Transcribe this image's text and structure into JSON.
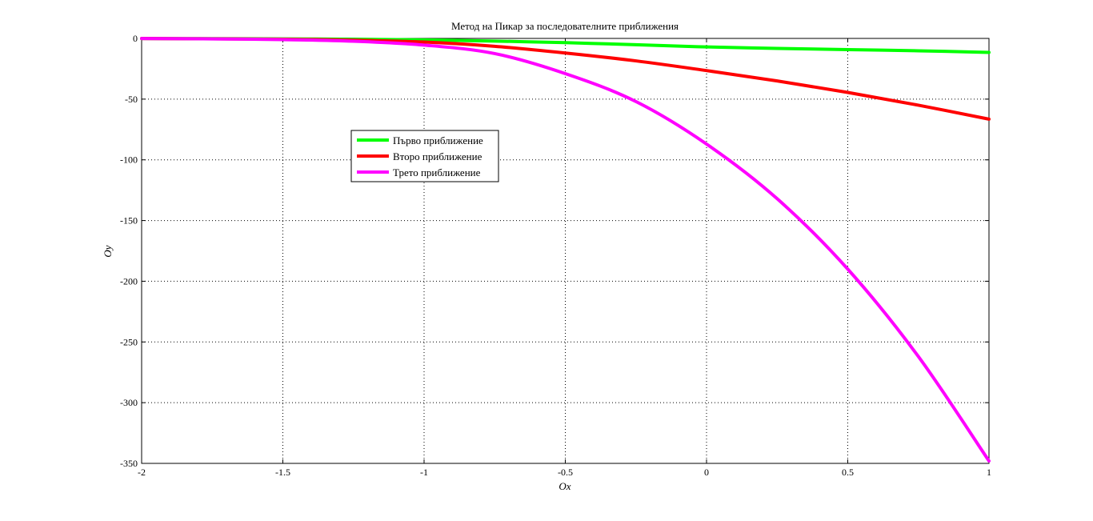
{
  "chart_data": {
    "type": "line",
    "title": "Метод на Пикар за последователните приближения",
    "xlabel": "Ox",
    "ylabel": "Oy",
    "xlim": [
      -2,
      1
    ],
    "ylim": [
      -350,
      0
    ],
    "xticks": [
      -2,
      -1.5,
      -1,
      -0.5,
      0,
      0.5,
      1
    ],
    "yticks": [
      0,
      -50,
      -100,
      -150,
      -200,
      -250,
      -300,
      -350
    ],
    "xtick_labels": [
      "-2",
      "-1.5",
      "-1",
      "-0.5",
      "0",
      "0.5",
      "1"
    ],
    "ytick_labels": [
      "0",
      "-50",
      "-100",
      "-150",
      "-200",
      "-250",
      "-300",
      "-350"
    ],
    "grid": true,
    "legend_position": "upper-left-center",
    "x": [
      -2,
      -1.75,
      -1.5,
      -1.25,
      -1,
      -0.75,
      -0.5,
      -0.25,
      0,
      0.25,
      0.5,
      0.75,
      1
    ],
    "series": [
      {
        "name": "Първо приближение",
        "color": "#00ff00",
        "values": [
          -0.1,
          -0.2,
          -0.4,
          -0.7,
          -1.2,
          -2.2,
          -3.5,
          -5.2,
          -7.0,
          -8.2,
          -9.2,
          -10.2,
          -11.5
        ]
      },
      {
        "name": "Второ приближение",
        "color": "#ff0000",
        "values": [
          -0.1,
          -0.3,
          -0.7,
          -1.4,
          -3.0,
          -6.5,
          -12.0,
          -18.5,
          -26.5,
          -35.0,
          -44.5,
          -55.0,
          -66.5
        ]
      },
      {
        "name": "Трето приближение",
        "color": "#ff00ff",
        "values": [
          -0.1,
          -0.4,
          -1.0,
          -2.3,
          -5.5,
          -12.5,
          -29.0,
          -52.0,
          -87.0,
          -132.0,
          -190.0,
          -262.0,
          -348.0
        ]
      }
    ]
  }
}
